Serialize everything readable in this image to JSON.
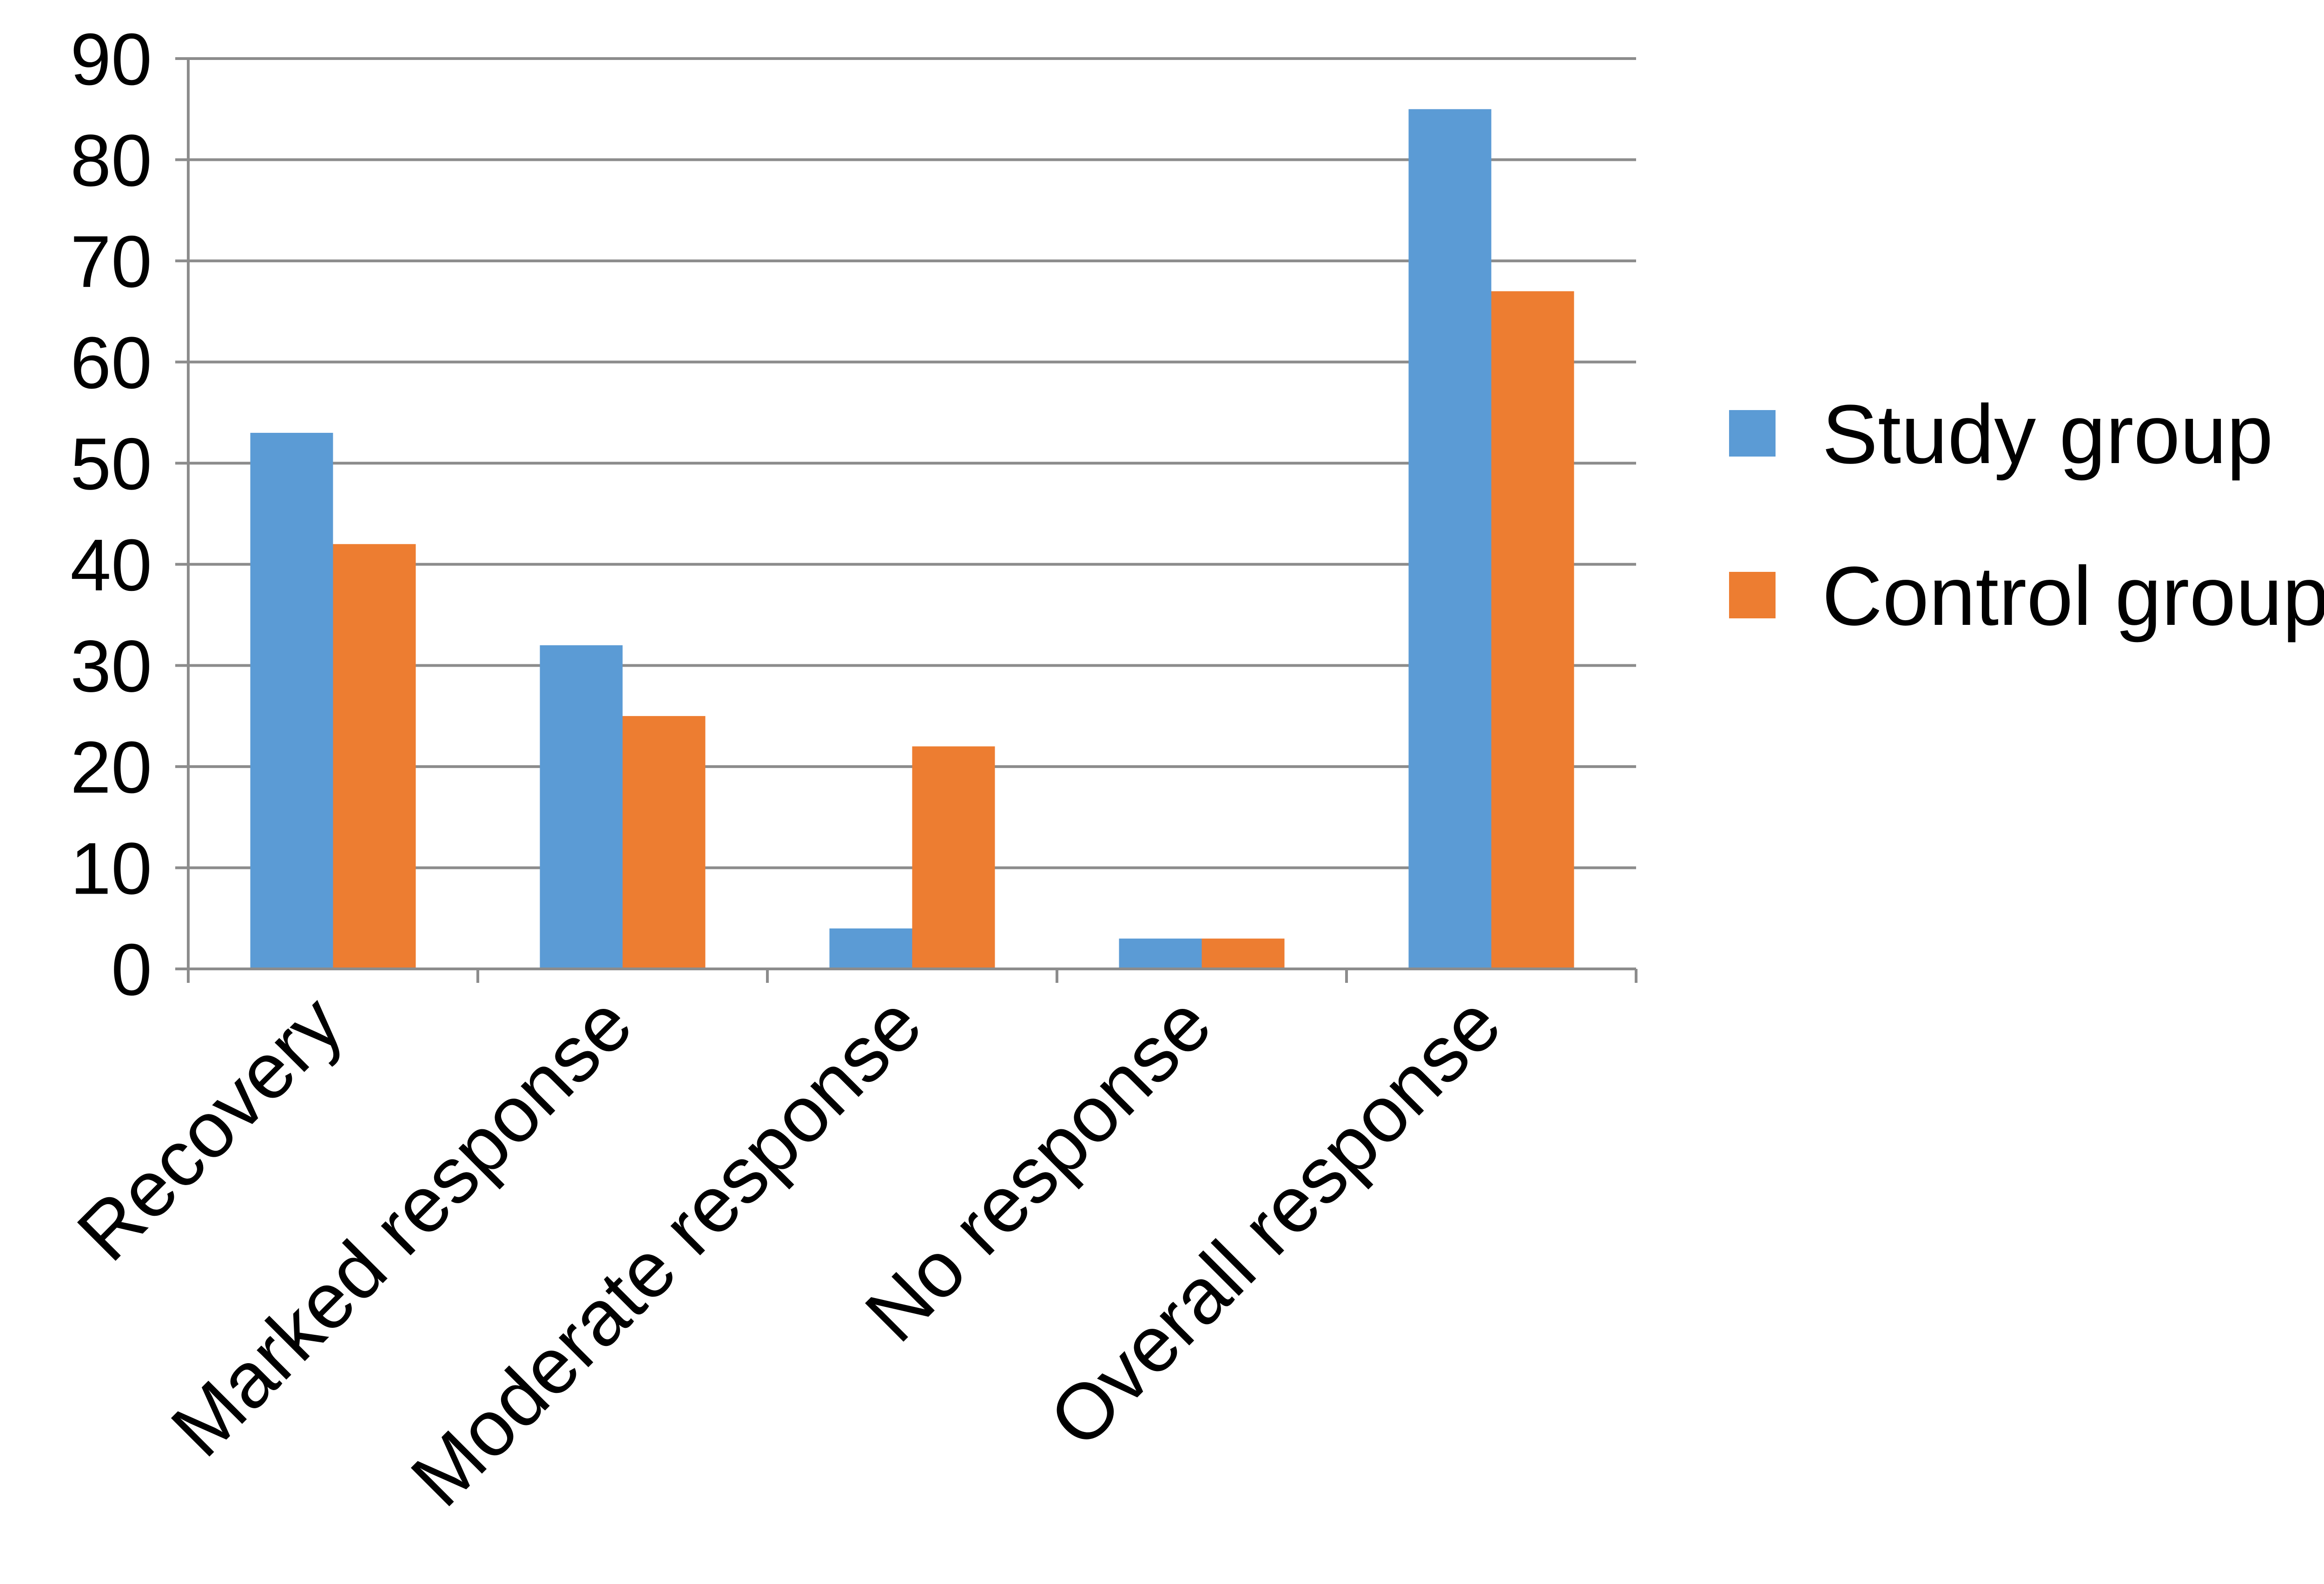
{
  "chart_data": {
    "type": "bar",
    "title": "",
    "xlabel": "",
    "ylabel": "",
    "categories": [
      "Recovery",
      "Marked response",
      "Moderate response",
      "No response",
      "Overall response"
    ],
    "series": [
      {
        "name": "Study group",
        "color": "#5b9bd5",
        "values": [
          53,
          32,
          4,
          3,
          85
        ]
      },
      {
        "name": "Control group",
        "color": "#ed7d31",
        "values": [
          42,
          25,
          22,
          3,
          67
        ]
      }
    ],
    "ylim": [
      0,
      90
    ],
    "yticks": [
      0,
      10,
      20,
      30,
      40,
      50,
      60,
      70,
      80,
      90
    ],
    "grid": true,
    "legend_position": "right"
  }
}
